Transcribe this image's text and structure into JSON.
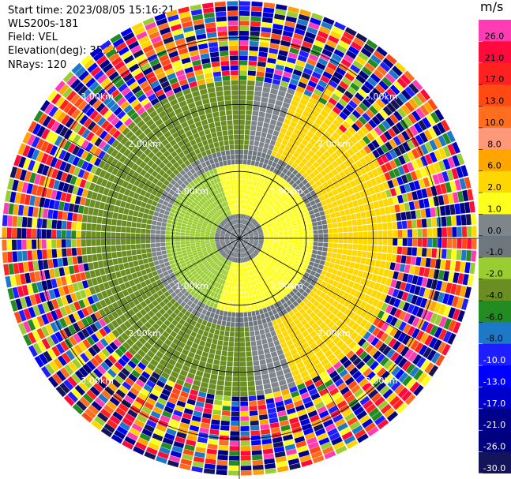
{
  "info": {
    "start_time": "Start time: 2023/08/05 15:16:21",
    "instrument": "WLS200s-181",
    "field": "Field: VEL",
    "elevation": "Elevation(deg): 35.30",
    "nrays": "NRays: 120"
  },
  "chart_data": {
    "type": "heatmap",
    "projection": "polar-ppi",
    "field": "VEL",
    "elevation_deg": 35.3,
    "nrays": 120,
    "range_rings_km": [
      1.0,
      2.0,
      3.0
    ],
    "range_ring_labels": [
      "1.00km",
      "2.00km",
      "3.00km"
    ],
    "max_range_km": 3.55,
    "colorbar": {
      "unit": "m/s",
      "ticks": [
        "26.0",
        "21.0",
        "17.0",
        "13.0",
        "10.0",
        "8.0",
        "6.0",
        "2.0",
        "1.0",
        "0.0",
        "-1.0",
        "-2.0",
        "-4.0",
        "-6.0",
        "-8.0",
        "-10.0",
        "-13.0",
        "-17.0",
        "-21.0",
        "-26.0",
        "-30.0"
      ],
      "colors": [
        "#ff3cb4",
        "#ff0a3c",
        "#ff2020",
        "#ff4a14",
        "#ff6e1e",
        "#ff9878",
        "#ffa500",
        "#ffd700",
        "#ffff1e",
        "#7e868c",
        "#6f777e",
        "#9acd32",
        "#6b8e23",
        "#228b22",
        "#1e78c8",
        "#1e1eff",
        "#0000ff",
        "#0000cd",
        "#00008b",
        "#000080",
        "#14145a"
      ]
    },
    "velocity_zones": [
      {
        "range_km": [
          0.0,
          0.4
        ],
        "value_ms": -0.5
      },
      {
        "range_km": [
          0.4,
          1.1
        ],
        "value_ms": 1.5
      },
      {
        "range_km": [
          1.1,
          1.3
        ],
        "value_ms": -0.5
      },
      {
        "range_km": [
          1.3,
          2.4
        ],
        "value_ms": -2.5
      },
      {
        "range_km": [
          2.4,
          3.55
        ],
        "value_ms": "noise"
      }
    ]
  }
}
